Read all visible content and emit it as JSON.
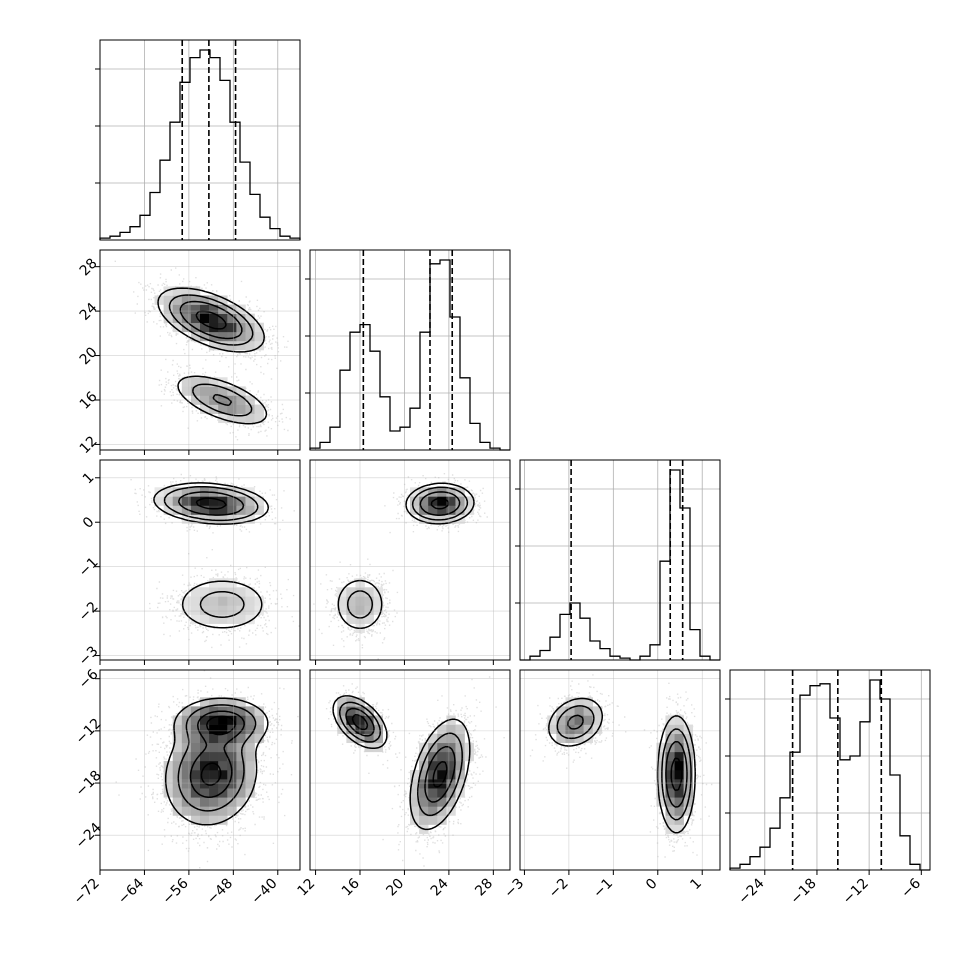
{
  "chart_data": {
    "type": "corner",
    "parameters": 4,
    "ranges": [
      [
        -72,
        -36
      ],
      [
        11.5,
        29.5
      ],
      [
        -3.1,
        1.4
      ],
      [
        -28,
        -5
      ]
    ],
    "ticks": [
      [
        "−72",
        "−64",
        "−56",
        "−48",
        "−40"
      ],
      [
        "12",
        "16",
        "20",
        "24",
        "28"
      ],
      [
        "−3",
        "−2",
        "−1",
        "0",
        "1"
      ],
      [
        "−24",
        "−18",
        "−12",
        "−6"
      ]
    ],
    "tick_values": [
      [
        -72,
        -64,
        -56,
        -48,
        -40
      ],
      [
        12,
        16,
        20,
        24,
        28
      ],
      [
        -3,
        -2,
        -1,
        0,
        1
      ],
      [
        -24,
        -18,
        -12,
        -6
      ]
    ],
    "quantiles": [
      [
        -57.2,
        -52.4,
        -47.6
      ],
      [
        16.3,
        22.3,
        24.3
      ],
      [
        -1.95,
        0.28,
        0.56
      ],
      [
        -20.8,
        -15.6,
        -10.6
      ]
    ],
    "histograms": [
      {
        "edges": [
          -72,
          -70.2,
          -68.4,
          -66.6,
          -64.8,
          -63,
          -61.2,
          -59.4,
          -57.6,
          -55.8,
          -54,
          -52.2,
          -50.4,
          -48.6,
          -46.8,
          -45,
          -43.2,
          -41.4,
          -39.6,
          -37.8,
          -36
        ],
        "counts": [
          0.01,
          0.02,
          0.04,
          0.07,
          0.13,
          0.25,
          0.42,
          0.62,
          0.83,
          0.96,
          1.0,
          0.96,
          0.84,
          0.62,
          0.41,
          0.24,
          0.12,
          0.06,
          0.02,
          0.01
        ]
      },
      {
        "edges": [
          11.5,
          12.4,
          13.3,
          14.2,
          15.1,
          16.0,
          16.9,
          17.8,
          18.7,
          19.6,
          20.5,
          21.4,
          22.3,
          23.2,
          24.1,
          25.0,
          25.9,
          26.8,
          27.7,
          28.6,
          29.5
        ],
        "counts": [
          0.01,
          0.04,
          0.12,
          0.42,
          0.62,
          0.66,
          0.52,
          0.28,
          0.1,
          0.12,
          0.22,
          0.62,
          0.98,
          1.0,
          0.7,
          0.38,
          0.14,
          0.04,
          0.01,
          0.0
        ]
      },
      {
        "edges": [
          -3.1,
          -2.875,
          -2.65,
          -2.425,
          -2.2,
          -1.975,
          -1.75,
          -1.525,
          -1.3,
          -1.075,
          -0.85,
          -0.625,
          -0.4,
          -0.175,
          0.05,
          0.275,
          0.5,
          0.725,
          0.95,
          1.175,
          1.4
        ],
        "counts": [
          0.0,
          0.02,
          0.05,
          0.12,
          0.24,
          0.3,
          0.22,
          0.1,
          0.06,
          0.02,
          0.01,
          0.0,
          0.02,
          0.08,
          0.52,
          1.0,
          0.8,
          0.16,
          0.02,
          0.0
        ]
      },
      {
        "edges": [
          -28,
          -26.85,
          -25.7,
          -24.55,
          -23.4,
          -22.25,
          -21.1,
          -19.95,
          -18.8,
          -17.65,
          -16.5,
          -15.35,
          -14.2,
          -13.05,
          -11.9,
          -10.75,
          -9.6,
          -8.45,
          -7.3,
          -6.15,
          -5
        ],
        "counts": [
          0.01,
          0.03,
          0.07,
          0.12,
          0.22,
          0.38,
          0.62,
          0.92,
          0.97,
          0.98,
          0.8,
          0.58,
          0.6,
          0.78,
          1.0,
          0.9,
          0.5,
          0.18,
          0.03,
          0.0
        ]
      }
    ],
    "clusters": [
      {
        "weight": 0.7,
        "mean": [
          -52,
          23.2,
          0.42,
          -17
        ],
        "sd": [
          4.5,
          1.35,
          0.2,
          3.2
        ],
        "corr": [
          [
            1,
            -0.55,
            -0.2,
            0.1
          ],
          [
            -0.55,
            1,
            0.05,
            0.45
          ],
          [
            -0.2,
            0.05,
            1,
            0.0
          ],
          [
            0.1,
            0.45,
            0.0,
            1
          ]
        ]
      },
      {
        "weight": 0.3,
        "mean": [
          -50,
          16.0,
          -1.85,
          -11
        ],
        "sd": [
          4.5,
          1.2,
          0.33,
          1.5
        ],
        "corr": [
          [
            1,
            -0.6,
            0.0,
            0.0
          ],
          [
            -0.6,
            1,
            0.0,
            -0.5
          ],
          [
            0.0,
            0.0,
            1,
            0.25
          ],
          [
            0.0,
            -0.5,
            0.25,
            1
          ]
        ]
      }
    ],
    "grid": true,
    "title": "",
    "legend": ""
  }
}
